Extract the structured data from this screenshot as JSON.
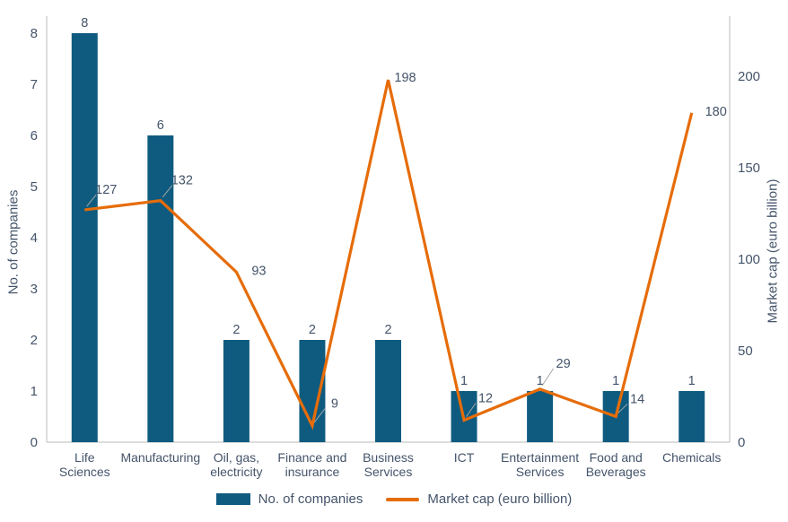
{
  "chart_data": {
    "type": "bar",
    "subtype": "bar-line-combo",
    "categories": [
      [
        "Life",
        "Sciences"
      ],
      [
        "Manufacturing"
      ],
      [
        "Oil, gas,",
        "electricity"
      ],
      [
        "Finance and",
        "insurance"
      ],
      [
        "Business",
        "Services"
      ],
      [
        "ICT"
      ],
      [
        "Entertainment",
        "Services"
      ],
      [
        "Food and",
        "Beverages"
      ],
      [
        "Chemicals"
      ]
    ],
    "series": [
      {
        "name": "No. of companies",
        "type": "bar",
        "axis": "left",
        "color": "#0f5b80",
        "values": [
          8,
          6,
          2,
          2,
          2,
          1,
          1,
          1,
          1
        ]
      },
      {
        "name": "Market cap (euro billion)",
        "type": "line",
        "axis": "right",
        "color": "#e66c09",
        "values": [
          127,
          132,
          93,
          9,
          198,
          12,
          29,
          14,
          180
        ],
        "point_labels": [
          {
            "dx": 24,
            "dy": -23,
            "leader": true
          },
          {
            "dx": 24,
            "dy": -23,
            "leader": true
          },
          {
            "dx": 25,
            "dy": -2,
            "leader": false
          },
          {
            "dx": 25,
            "dy": -25,
            "leader": true
          },
          {
            "dx": 19,
            "dy": -3,
            "leader": false
          },
          {
            "dx": 24,
            "dy": -25,
            "leader": true
          },
          {
            "dx": 26,
            "dy": -29,
            "leader": true
          },
          {
            "dx": 24,
            "dy": -20,
            "leader": true
          },
          {
            "dx": 27,
            "dy": -2,
            "leader": false
          }
        ]
      }
    ],
    "left_axis": {
      "title": "No. of companies",
      "min": 0,
      "max": 8,
      "ticks": [
        "0",
        "1",
        "2",
        "3",
        "4",
        "5",
        "6",
        "7",
        "8"
      ]
    },
    "right_axis": {
      "title": "Market cap (euro billion)",
      "min": 0,
      "max": 200,
      "ticks": [
        "0",
        "50",
        "100",
        "150",
        "200"
      ]
    },
    "legend": [
      "No. of companies",
      "Market cap (euro billion)"
    ],
    "grid": false,
    "colors": {
      "bar": "#0f5b80",
      "line": "#e66c09",
      "text": "#44546a",
      "axis_line": "#c6c6c6",
      "leader_line": "#a6a6a6"
    }
  }
}
